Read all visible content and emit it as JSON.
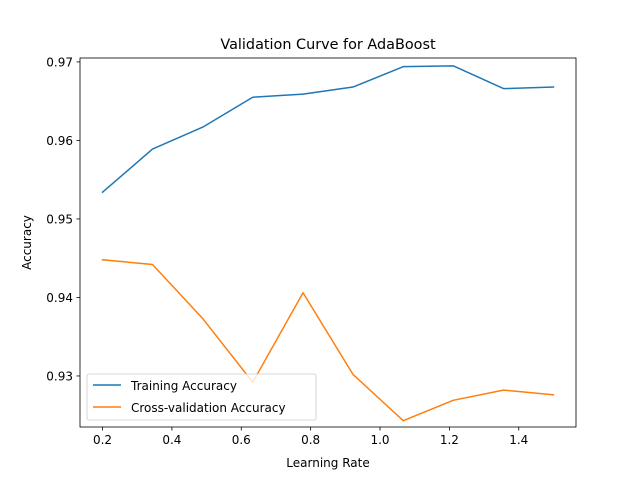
{
  "chart_data": {
    "type": "line",
    "title": "Validation Curve for AdaBoost",
    "xlabel": "Learning Rate",
    "ylabel": "Accuracy",
    "xlim": [
      0.135,
      1.565
    ],
    "ylim": [
      0.9235,
      0.9705
    ],
    "xticks": [
      "0.2",
      "0.4",
      "0.6",
      "0.8",
      "1.0",
      "1.2",
      "1.4"
    ],
    "xtick_values": [
      0.2,
      0.4,
      0.6,
      0.8,
      1.0,
      1.2,
      1.4
    ],
    "yticks": [
      "0.93",
      "0.94",
      "0.95",
      "0.96",
      "0.97"
    ],
    "ytick_values": [
      0.93,
      0.94,
      0.95,
      0.96,
      0.97
    ],
    "x": [
      0.2,
      0.344,
      0.489,
      0.633,
      0.778,
      0.922,
      1.067,
      1.211,
      1.356,
      1.5
    ],
    "series": [
      {
        "name": "Training Accuracy",
        "color": "#1f77b4",
        "values": [
          0.9534,
          0.9589,
          0.9617,
          0.9655,
          0.9659,
          0.9668,
          0.9694,
          0.9695,
          0.9666,
          0.9668
        ]
      },
      {
        "name": "Cross-validation Accuracy",
        "color": "#ff7f0e",
        "values": [
          0.9448,
          0.9442,
          0.9373,
          0.9292,
          0.9406,
          0.9302,
          0.9243,
          0.9269,
          0.9282,
          0.9276
        ]
      }
    ],
    "grid": false,
    "legend": "lower-left"
  }
}
